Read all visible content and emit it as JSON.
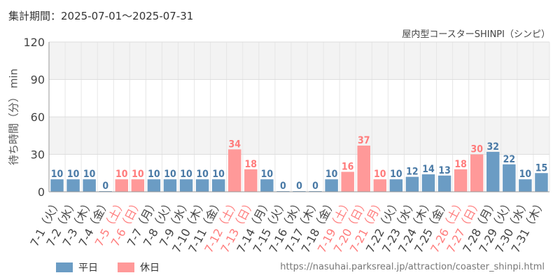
{
  "header": {
    "period": "集計期間：2025-07-01～2025-07-31",
    "title": "屋内型コースターSHINPI（シンピ）"
  },
  "footer": {
    "source": "https://nasuhai.parksreal.jp/attraction/coaster_shinpi.html"
  },
  "colors": {
    "weekday": "#6b9cc4",
    "holiday": "#ff9999",
    "weekday_text": "#4a7aa6",
    "holiday_text": "#ff7b7b",
    "axis_text": "#444444"
  },
  "chart_data": {
    "type": "bar",
    "title": "屋内型コースターSHINPI（シンピ）",
    "ylabel": "待ち時間（分） min",
    "xlabel": "",
    "ylim": [
      0,
      120
    ],
    "yticks": [
      0,
      30,
      60,
      90,
      120
    ],
    "grid": true,
    "legend_position": "bottom-left",
    "legend": [
      {
        "name": "平日",
        "type": "weekday"
      },
      {
        "name": "休日",
        "type": "holiday"
      }
    ],
    "categories": [
      "7-1（火）",
      "7-2（水）",
      "7-3（木）",
      "7-4（金）",
      "7-5（土）",
      "7-6（日）",
      "7-7（月）",
      "7-8（火）",
      "7-9（水）",
      "7-10（木）",
      "7-11（金）",
      "7-12（土）",
      "7-13（日）",
      "7-14（月）",
      "7-15（火）",
      "7-16（水）",
      "7-17（木）",
      "7-18（金）",
      "7-19（土）",
      "7-20（日）",
      "7-21（月）",
      "7-22（火）",
      "7-23（水）",
      "7-24（木）",
      "7-25（金）",
      "7-26（土）",
      "7-27（日）",
      "7-28（月）",
      "7-29（火）",
      "7-30（水）",
      "7-31（木）"
    ],
    "values": [
      10,
      10,
      10,
      0,
      10,
      10,
      10,
      10,
      10,
      10,
      10,
      34,
      18,
      10,
      0,
      0,
      0,
      10,
      16,
      37,
      10,
      10,
      12,
      14,
      13,
      18,
      30,
      32,
      22,
      10,
      15
    ],
    "holiday": [
      false,
      false,
      false,
      false,
      true,
      true,
      false,
      false,
      false,
      false,
      false,
      true,
      true,
      false,
      false,
      false,
      false,
      false,
      true,
      true,
      true,
      false,
      false,
      false,
      false,
      true,
      true,
      false,
      false,
      false,
      false
    ]
  }
}
